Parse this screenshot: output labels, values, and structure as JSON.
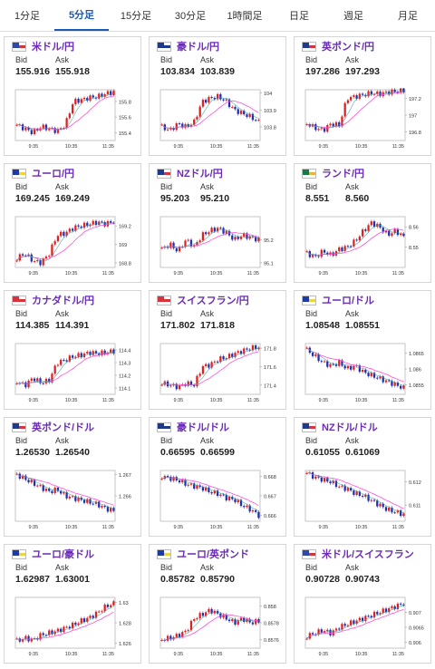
{
  "tabs": [
    {
      "label": "1分足"
    },
    {
      "label": "5分足",
      "active": true
    },
    {
      "label": "15分足"
    },
    {
      "label": "30分足"
    },
    {
      "label": "1時間足"
    },
    {
      "label": "日足"
    },
    {
      "label": "週足"
    },
    {
      "label": "月足"
    }
  ],
  "labels": {
    "bid": "Bid",
    "ask": "Ask"
  },
  "colors": {
    "up": "#e02020",
    "down": "#1f2fb0",
    "ma1": "#ff4fd8",
    "ma2": "#2e9a9a",
    "accent": "#1a5bb5",
    "pair_text": "#6a2bb6"
  },
  "cards": [
    {
      "pair": "米ドル/円",
      "flag": "us-flag-icon",
      "bid": "155.916",
      "ask": "155.918",
      "chart_data": {
        "type": "candlestick",
        "x_ticks": [
          "9:35",
          "10:35",
          "11:35"
        ],
        "y_ticks": [
          "155.8",
          "155.6",
          "155.4"
        ],
        "y_range": [
          155.3,
          155.95
        ],
        "trend": [
          155.5,
          155.45,
          155.4,
          155.48,
          155.45,
          155.42,
          155.5,
          155.8,
          155.82,
          155.85,
          155.86,
          155.9,
          155.92
        ]
      }
    },
    {
      "pair": "豪ドル/円",
      "flag": "au-flag-icon",
      "bid": "103.834",
      "ask": "103.839",
      "chart_data": {
        "type": "candlestick",
        "x_ticks": [
          "9:35",
          "10:35",
          "11:35"
        ],
        "y_ticks": [
          "104",
          "103.9",
          "103.8"
        ],
        "y_range": [
          103.72,
          104.02
        ],
        "trend": [
          103.8,
          103.78,
          103.82,
          103.8,
          103.83,
          103.95,
          103.97,
          103.98,
          103.95,
          103.9,
          103.88,
          103.86,
          103.83
        ]
      }
    },
    {
      "pair": "英ポンド/円",
      "flag": "gb-flag-icon",
      "bid": "197.286",
      "ask": "197.293",
      "chart_data": {
        "type": "candlestick",
        "x_ticks": [
          "9:35",
          "10:35",
          "11:35"
        ],
        "y_ticks": [
          "197.2",
          "197",
          "196.8"
        ],
        "y_range": [
          196.7,
          197.3
        ],
        "trend": [
          196.9,
          196.85,
          196.82,
          196.9,
          196.88,
          197.2,
          197.22,
          197.24,
          197.26,
          197.25,
          197.27,
          197.28,
          197.29
        ]
      }
    },
    {
      "pair": "ユーロ/円",
      "flag": "eu-flag-icon",
      "bid": "169.245",
      "ask": "169.249",
      "chart_data": {
        "type": "candlestick",
        "x_ticks": [
          "9:35",
          "10:35",
          "11:35"
        ],
        "y_ticks": [
          "169.2",
          "169",
          "168.8"
        ],
        "y_range": [
          168.75,
          169.3
        ],
        "trend": [
          168.85,
          168.9,
          168.82,
          168.8,
          168.9,
          169.1,
          169.12,
          169.18,
          169.2,
          169.22,
          169.24,
          169.22,
          169.25
        ]
      }
    },
    {
      "pair": "NZドル/円",
      "flag": "nz-flag-icon",
      "bid": "95.203",
      "ask": "95.210",
      "chart_data": {
        "type": "candlestick",
        "x_ticks": [
          "9:35",
          "10:35",
          "11:35"
        ],
        "y_ticks": [
          "95.2",
          "95.1"
        ],
        "y_range": [
          95.08,
          95.3
        ],
        "trend": [
          95.16,
          95.18,
          95.15,
          95.2,
          95.17,
          95.22,
          95.24,
          95.25,
          95.23,
          95.2,
          95.22,
          95.21,
          95.2
        ]
      }
    },
    {
      "pair": "ランド/円",
      "flag": "za-flag-icon",
      "bid": "8.551",
      "ask": "8.560",
      "chart_data": {
        "type": "candlestick",
        "x_ticks": [
          "9:35",
          "10:35",
          "11:35"
        ],
        "y_ticks": [
          "8.56",
          "8.55"
        ],
        "y_range": [
          8.54,
          8.565
        ],
        "trend": [
          8.547,
          8.545,
          8.548,
          8.546,
          8.549,
          8.55,
          8.553,
          8.558,
          8.562,
          8.56,
          8.556,
          8.558,
          8.555
        ]
      }
    },
    {
      "pair": "カナダドル/円",
      "flag": "ca-flag-icon",
      "bid": "114.385",
      "ask": "114.391",
      "chart_data": {
        "type": "candlestick",
        "x_ticks": [
          "9:35",
          "10:35",
          "11:35"
        ],
        "y_ticks": [
          "114.4",
          "114.3",
          "114.2",
          "114.1"
        ],
        "y_range": [
          114.05,
          114.45
        ],
        "trend": [
          114.15,
          114.12,
          114.18,
          114.14,
          114.16,
          114.3,
          114.32,
          114.35,
          114.36,
          114.38,
          114.37,
          114.38,
          114.39
        ]
      }
    },
    {
      "pair": "スイスフラン/円",
      "flag": "ch-flag-icon",
      "bid": "171.802",
      "ask": "171.818",
      "chart_data": {
        "type": "candlestick",
        "x_ticks": [
          "9:35",
          "10:35",
          "11:35"
        ],
        "y_ticks": [
          "171.8",
          "171.6",
          "171.4"
        ],
        "y_range": [
          171.3,
          171.85
        ],
        "trend": [
          171.42,
          171.4,
          171.38,
          171.42,
          171.4,
          171.6,
          171.62,
          171.68,
          171.7,
          171.74,
          171.77,
          171.8,
          171.81
        ]
      }
    },
    {
      "pair": "ユーロ/ドル",
      "flag": "eu-us-flag-icon",
      "bid": "1.08548",
      "ask": "1.08551",
      "chart_data": {
        "type": "candlestick",
        "x_ticks": [
          "9:35",
          "10:35",
          "11:35"
        ],
        "y_ticks": [
          "1.0865",
          "1.086",
          "1.0855"
        ],
        "y_range": [
          1.0852,
          1.0868
        ],
        "trend": [
          1.0866,
          1.0864,
          1.0862,
          1.0861,
          1.0862,
          1.086,
          1.0861,
          1.0859,
          1.0858,
          1.0857,
          1.0856,
          1.0855,
          1.0854
        ]
      }
    },
    {
      "pair": "英ポンド/ドル",
      "flag": "gb-us-flag-icon",
      "bid": "1.26530",
      "ask": "1.26540",
      "chart_data": {
        "type": "candlestick",
        "x_ticks": [
          "9:35",
          "10:35",
          "11:35"
        ],
        "y_ticks": [
          "1.267",
          "1.266"
        ],
        "y_range": [
          1.2648,
          1.2672
        ],
        "trend": [
          1.267,
          1.2668,
          1.2666,
          1.2664,
          1.2662,
          1.2663,
          1.266,
          1.2659,
          1.2658,
          1.2657,
          1.2656,
          1.2654,
          1.2653
        ]
      }
    },
    {
      "pair": "豪ドル/ドル",
      "flag": "au-us-flag-icon",
      "bid": "0.66595",
      "ask": "0.66599",
      "chart_data": {
        "type": "candlestick",
        "x_ticks": [
          "9:35",
          "10:35",
          "11:35"
        ],
        "y_ticks": [
          "0.668",
          "0.667",
          "0.666"
        ],
        "y_range": [
          0.6657,
          0.6683
        ],
        "trend": [
          0.668,
          0.6679,
          0.6678,
          0.6676,
          0.6675,
          0.6674,
          0.6672,
          0.6671,
          0.6669,
          0.6668,
          0.6665,
          0.6663,
          0.666
        ]
      }
    },
    {
      "pair": "NZドル/ドル",
      "flag": "nz-us-flag-icon",
      "bid": "0.61055",
      "ask": "0.61069",
      "chart_data": {
        "type": "candlestick",
        "x_ticks": [
          "9:35",
          "10:35",
          "11:35"
        ],
        "y_ticks": [
          "0.612",
          "0.611"
        ],
        "y_range": [
          0.6103,
          0.6125
        ],
        "trend": [
          0.6124,
          0.6122,
          0.6121,
          0.612,
          0.6118,
          0.6117,
          0.6115,
          0.6114,
          0.6112,
          0.611,
          0.6108,
          0.6107,
          0.6106
        ]
      }
    },
    {
      "pair": "ユーロ/豪ドル",
      "flag": "eu-au-flag-icon",
      "bid": "1.62987",
      "ask": "1.63001",
      "chart_data": {
        "type": "candlestick",
        "x_ticks": [
          "9:35",
          "10:35",
          "11:35"
        ],
        "y_ticks": [
          "1.63",
          "1.628",
          "1.626"
        ],
        "y_range": [
          1.6255,
          1.6305
        ],
        "trend": [
          1.6262,
          1.6265,
          1.6263,
          1.6268,
          1.627,
          1.6272,
          1.6275,
          1.6278,
          1.6282,
          1.6285,
          1.629,
          1.6296,
          1.6299
        ]
      }
    },
    {
      "pair": "ユーロ/英ポンド",
      "flag": "eu-gb-flag-icon",
      "bid": "0.85782",
      "ask": "0.85790",
      "chart_data": {
        "type": "candlestick",
        "x_ticks": [
          "9:35",
          "10:35",
          "11:35"
        ],
        "y_ticks": [
          "0.858",
          "0.8578",
          "0.8576"
        ],
        "y_range": [
          0.8575,
          0.8581
        ],
        "trend": [
          0.8576,
          0.85762,
          0.85765,
          0.8577,
          0.85785,
          0.8579,
          0.85795,
          0.8579,
          0.85785,
          0.8578,
          0.85785,
          0.8578,
          0.85782
        ]
      }
    },
    {
      "pair": "米ドル/スイスフラン",
      "flag": "us-ch-flag-icon",
      "bid": "0.90728",
      "ask": "0.90743",
      "chart_data": {
        "type": "candlestick",
        "x_ticks": [
          "9:35",
          "10:35",
          "11:35"
        ],
        "y_ticks": [
          "0.907",
          "0.9065",
          "0.906"
        ],
        "y_range": [
          0.9058,
          0.9075
        ],
        "trend": [
          0.9062,
          0.9063,
          0.9064,
          0.9063,
          0.9065,
          0.9066,
          0.9067,
          0.9068,
          0.9069,
          0.907,
          0.9071,
          0.9072,
          0.9073
        ]
      }
    }
  ]
}
